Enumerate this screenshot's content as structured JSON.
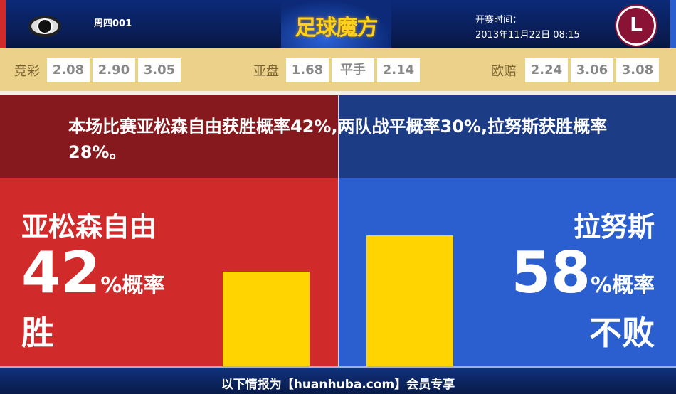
{
  "header": {
    "match_no": "周四001",
    "logo_text": "足球魔方",
    "start_label": "开赛时间：",
    "start_time": "2013年11月22日 08:15",
    "away_logo_glyph": "L"
  },
  "odds": {
    "jingcai": {
      "label": "竞彩",
      "values": [
        "2.08",
        "2.90",
        "3.05"
      ]
    },
    "yapan": {
      "label": "亚盘",
      "values": [
        "1.68",
        "平手",
        "2.14"
      ]
    },
    "oupei": {
      "label": "欧赔",
      "values": [
        "2.24",
        "3.06",
        "3.08"
      ]
    }
  },
  "summary": "本场比赛亚松森自由获胜概率42%,两队战平概率30%,拉努斯获胜概率28%。",
  "home": {
    "name": "亚松森自由",
    "percent": "42",
    "percent_suffix": "%概率",
    "result": "胜",
    "bar_value": 42
  },
  "away": {
    "name": "拉努斯",
    "percent": "58",
    "percent_suffix": "%概率",
    "result": "不败",
    "bar_value": 58
  },
  "footer": "以下情报为【huanhuba.com】会员专享",
  "colors": {
    "home": "#d12a2a",
    "away": "#2b5fcf",
    "bar": "#ffd400",
    "odds_band": "#ebd18a"
  }
}
